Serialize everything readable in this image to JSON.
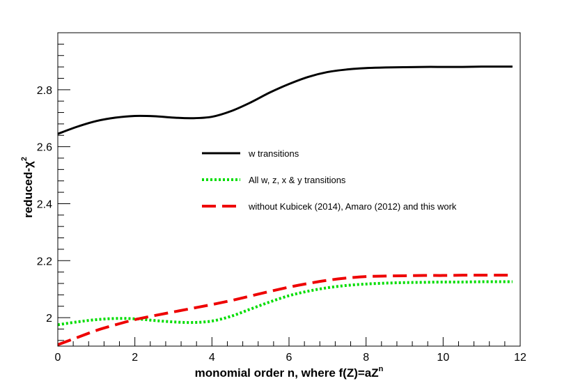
{
  "chart_data": {
    "type": "line",
    "title": "",
    "xlabel": "monomial order n, where f(Z)=aZ",
    "xlabel_superscript": "n",
    "ylabel": "reduced-χ",
    "ylabel_superscript": "2",
    "xlim": [
      0,
      12
    ],
    "ylim": [
      1.9,
      3.0
    ],
    "x_major_ticks": [
      0,
      2,
      4,
      6,
      8,
      10,
      12
    ],
    "x_tick_labels": [
      "0",
      "2",
      "4",
      "6",
      "8",
      "10",
      "12"
    ],
    "y_major_ticks": [
      2.0,
      2.2,
      2.4,
      2.6,
      2.8
    ],
    "y_tick_labels": [
      "2",
      "2.2",
      "2.4",
      "2.6",
      "2.8"
    ],
    "grid": false,
    "legend_position": "center",
    "series": [
      {
        "name": "w transitions",
        "color": "#000000",
        "style": "solid",
        "x": [
          0,
          0.5,
          1,
          1.5,
          2,
          2.5,
          3,
          3.5,
          4,
          4.5,
          5,
          5.5,
          6,
          6.5,
          7,
          7.5,
          8,
          8.5,
          9,
          9.5,
          10,
          10.5,
          11,
          11.5,
          11.8
        ],
        "y": [
          2.645,
          2.67,
          2.69,
          2.702,
          2.708,
          2.707,
          2.702,
          2.7,
          2.705,
          2.725,
          2.755,
          2.79,
          2.82,
          2.845,
          2.862,
          2.871,
          2.876,
          2.878,
          2.879,
          2.88,
          2.88,
          2.88,
          2.881,
          2.881,
          2.881
        ]
      },
      {
        "name": "All w, z, x & y transitions",
        "color": "#00dd00",
        "style": "dotted",
        "x": [
          0,
          0.5,
          1,
          1.5,
          2,
          2.5,
          3,
          3.5,
          4,
          4.5,
          5,
          5.5,
          6,
          6.5,
          7,
          7.5,
          8,
          8.5,
          9,
          9.5,
          10,
          10.5,
          11,
          11.5,
          11.8
        ],
        "y": [
          1.975,
          1.985,
          1.993,
          1.997,
          1.996,
          1.99,
          1.985,
          1.983,
          1.988,
          2.005,
          2.03,
          2.055,
          2.077,
          2.093,
          2.105,
          2.113,
          2.118,
          2.121,
          2.123,
          2.124,
          2.125,
          2.125,
          2.126,
          2.126,
          2.126
        ]
      },
      {
        "name": "without Kubicek (2014), Amaro (2012) and this work",
        "color": "#ee0000",
        "style": "dashed",
        "x": [
          0,
          0.5,
          1,
          1.5,
          2,
          2.5,
          3,
          3.5,
          4,
          4.5,
          5,
          5.5,
          6,
          6.5,
          7,
          7.5,
          8,
          8.5,
          9,
          9.5,
          10,
          10.5,
          11,
          11.5,
          11.8
        ],
        "y": [
          1.905,
          1.93,
          1.955,
          1.975,
          1.993,
          2.007,
          2.02,
          2.033,
          2.046,
          2.06,
          2.076,
          2.092,
          2.107,
          2.12,
          2.131,
          2.139,
          2.144,
          2.146,
          2.147,
          2.148,
          2.148,
          2.149,
          2.149,
          2.149,
          2.149
        ]
      }
    ]
  }
}
